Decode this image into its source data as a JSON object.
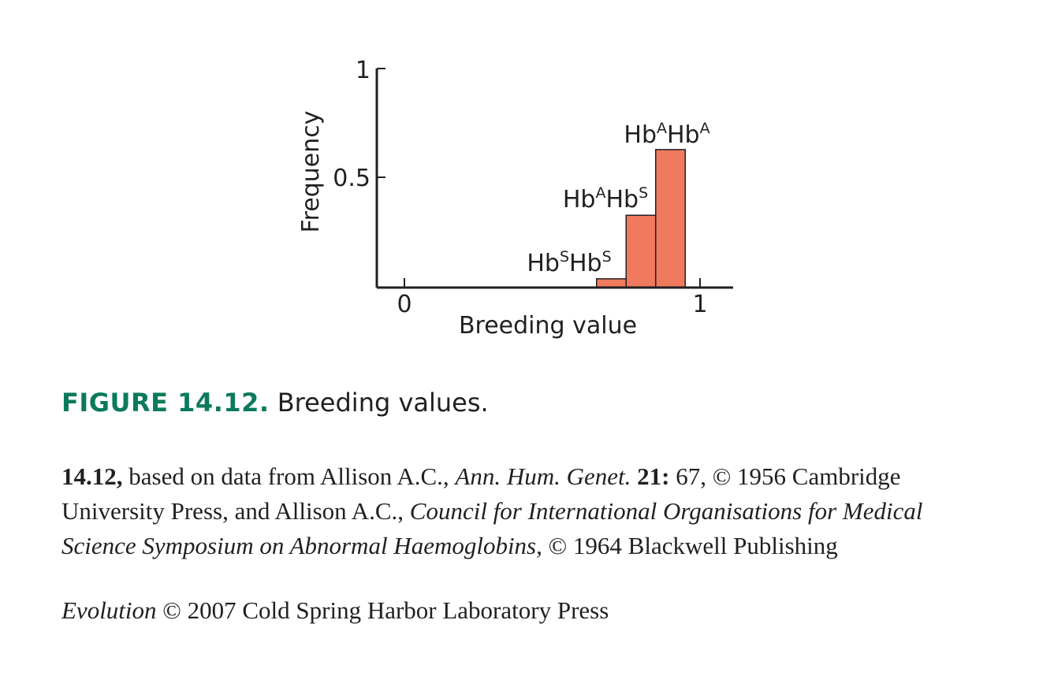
{
  "chart_data": {
    "type": "bar",
    "xlabel": "Breeding value",
    "ylabel": "Frequency",
    "xlim": [
      -0.1,
      1.1
    ],
    "ylim": [
      0,
      1
    ],
    "xticks": [
      "0",
      "1"
    ],
    "yticks": [
      "0.5",
      "1"
    ],
    "bar_color": "#f07a5e",
    "bars": [
      {
        "label": "HbSHbS",
        "x0": 0.65,
        "x1": 0.75,
        "value": 0.04,
        "label_parts": {
          "b1": "Hb",
          "s1": "S",
          "b2": "Hb",
          "s2": "S"
        }
      },
      {
        "label": "HbAHbS",
        "x0": 0.75,
        "x1": 0.85,
        "value": 0.33,
        "label_parts": {
          "b1": "Hb",
          "s1": "A",
          "b2": "Hb",
          "s2": "S"
        }
      },
      {
        "label": "HbAHbA",
        "x0": 0.85,
        "x1": 0.95,
        "value": 0.63,
        "label_parts": {
          "b1": "Hb",
          "s1": "A",
          "b2": "Hb",
          "s2": "A"
        }
      }
    ]
  },
  "caption": {
    "figure_label": "FIGURE 14.12.",
    "text": "Breeding values."
  },
  "credits": {
    "num": "14.12,",
    "t1": " based on data from Allison A.C., ",
    "i1": "Ann. Hum. Genet.",
    "b2": " 21:",
    "t2": " 67, © 1956 Cambridge University Press, and Allison A.C., ",
    "i2": "Council for International Organisations for Medical Science Symposium on Abnormal Haemoglobins,",
    "t3": " © 1964 Blackwell Publishing"
  },
  "footer": {
    "italic": "Evolution",
    "text": " © 2007 Cold Spring Harbor Laboratory Press"
  }
}
